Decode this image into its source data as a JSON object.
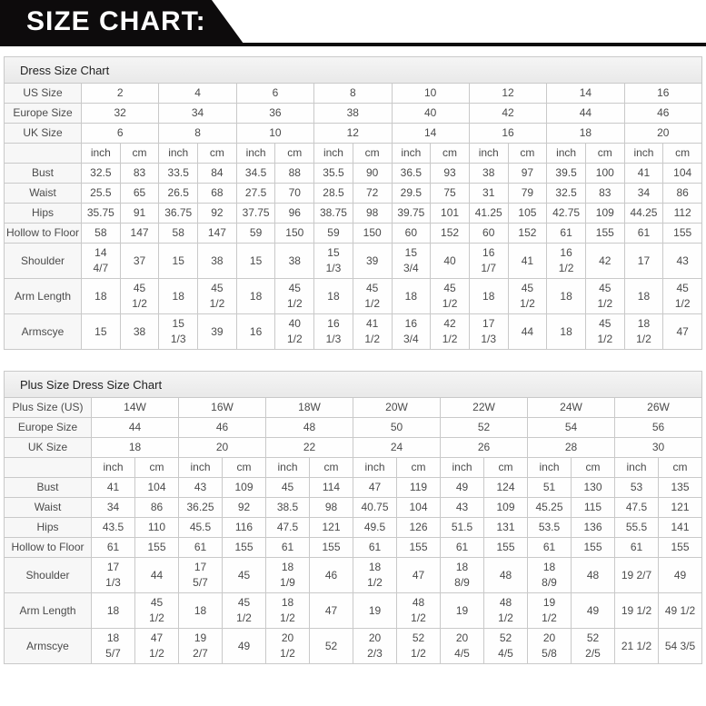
{
  "banner": {
    "title": "SIZE CHART:"
  },
  "colors": {
    "banner_bg": "#0d0b0c",
    "banner_text": "#ffffff",
    "table_border": "#c9c9c9",
    "title_bar_bg": "#efefef",
    "label_cell_bg": "#f7f7f7",
    "cell_text": "#4b4b4b"
  },
  "tables": [
    {
      "title": "Dress Size Chart",
      "size_rows": [
        {
          "label": "US Size",
          "values": [
            "2",
            "4",
            "6",
            "8",
            "10",
            "12",
            "14",
            "16"
          ]
        },
        {
          "label": "Europe Size",
          "values": [
            "32",
            "34",
            "36",
            "38",
            "40",
            "42",
            "44",
            "46"
          ]
        },
        {
          "label": "UK Size",
          "values": [
            "6",
            "8",
            "10",
            "12",
            "14",
            "16",
            "18",
            "20"
          ]
        }
      ],
      "unit_row": [
        "inch",
        "cm"
      ],
      "measure_rows": [
        {
          "label": "Bust",
          "values": [
            "32.5",
            "83",
            "33.5",
            "84",
            "34.5",
            "88",
            "35.5",
            "90",
            "36.5",
            "93",
            "38",
            "97",
            "39.5",
            "100",
            "41",
            "104"
          ]
        },
        {
          "label": "Waist",
          "values": [
            "25.5",
            "65",
            "26.5",
            "68",
            "27.5",
            "70",
            "28.5",
            "72",
            "29.5",
            "75",
            "31",
            "79",
            "32.5",
            "83",
            "34",
            "86"
          ]
        },
        {
          "label": "Hips",
          "values": [
            "35.75",
            "91",
            "36.75",
            "92",
            "37.75",
            "96",
            "38.75",
            "98",
            "39.75",
            "101",
            "41.25",
            "105",
            "42.75",
            "109",
            "44.25",
            "112"
          ]
        },
        {
          "label": "Hollow to Floor",
          "values": [
            "58",
            "147",
            "58",
            "147",
            "59",
            "150",
            "59",
            "150",
            "60",
            "152",
            "60",
            "152",
            "61",
            "155",
            "61",
            "155"
          ]
        },
        {
          "label": "Shoulder",
          "values": [
            "14\n4/7",
            "37",
            "15",
            "38",
            "15",
            "38",
            "15\n1/3",
            "39",
            "15\n3/4",
            "40",
            "16\n1/7",
            "41",
            "16\n1/2",
            "42",
            "17",
            "43"
          ]
        },
        {
          "label": "Arm Length",
          "values": [
            "18",
            "45\n1/2",
            "18",
            "45\n1/2",
            "18",
            "45\n1/2",
            "18",
            "45\n1/2",
            "18",
            "45\n1/2",
            "18",
            "45\n1/2",
            "18",
            "45\n1/2",
            "18",
            "45\n1/2"
          ]
        },
        {
          "label": "Armscye",
          "values": [
            "15",
            "38",
            "15\n1/3",
            "39",
            "16",
            "40\n1/2",
            "16\n1/3",
            "41\n1/2",
            "16\n3/4",
            "42\n1/2",
            "17\n1/3",
            "44",
            "18",
            "45\n1/2",
            "18\n1/2",
            "47"
          ]
        }
      ]
    },
    {
      "title": "Plus Size Dress Size Chart",
      "size_rows": [
        {
          "label": "Plus Size (US)",
          "values": [
            "14W",
            "16W",
            "18W",
            "20W",
            "22W",
            "24W",
            "26W"
          ]
        },
        {
          "label": "Europe Size",
          "values": [
            "44",
            "46",
            "48",
            "50",
            "52",
            "54",
            "56"
          ]
        },
        {
          "label": "UK Size",
          "values": [
            "18",
            "20",
            "22",
            "24",
            "26",
            "28",
            "30"
          ]
        }
      ],
      "unit_row": [
        "inch",
        "cm"
      ],
      "measure_rows": [
        {
          "label": "Bust",
          "values": [
            "41",
            "104",
            "43",
            "109",
            "45",
            "114",
            "47",
            "119",
            "49",
            "124",
            "51",
            "130",
            "53",
            "135"
          ]
        },
        {
          "label": "Waist",
          "values": [
            "34",
            "86",
            "36.25",
            "92",
            "38.5",
            "98",
            "40.75",
            "104",
            "43",
            "109",
            "45.25",
            "115",
            "47.5",
            "121"
          ]
        },
        {
          "label": "Hips",
          "values": [
            "43.5",
            "110",
            "45.5",
            "116",
            "47.5",
            "121",
            "49.5",
            "126",
            "51.5",
            "131",
            "53.5",
            "136",
            "55.5",
            "141"
          ]
        },
        {
          "label": "Hollow to Floor",
          "values": [
            "61",
            "155",
            "61",
            "155",
            "61",
            "155",
            "61",
            "155",
            "61",
            "155",
            "61",
            "155",
            "61",
            "155"
          ]
        },
        {
          "label": "Shoulder",
          "values": [
            "17\n1/3",
            "44",
            "17\n5/7",
            "45",
            "18\n1/9",
            "46",
            "18\n1/2",
            "47",
            "18\n8/9",
            "48",
            "18\n8/9",
            "48",
            "19 2/7",
            "49"
          ]
        },
        {
          "label": "Arm Length",
          "values": [
            "18",
            "45\n1/2",
            "18",
            "45\n1/2",
            "18\n1/2",
            "47",
            "19",
            "48\n1/2",
            "19",
            "48\n1/2",
            "19\n1/2",
            "49",
            "19 1/2",
            "49 1/2"
          ]
        },
        {
          "label": "Armscye",
          "values": [
            "18\n5/7",
            "47\n1/2",
            "19\n2/7",
            "49",
            "20\n1/2",
            "52",
            "20\n2/3",
            "52\n1/2",
            "20\n4/5",
            "52\n4/5",
            "20\n5/8",
            "52\n2/5",
            "21 1/2",
            "54 3/5"
          ]
        }
      ]
    }
  ]
}
